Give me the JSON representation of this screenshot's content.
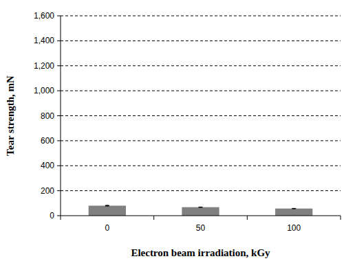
{
  "chart_data": {
    "type": "bar",
    "x_label": "Electron beam irradiation, kGy",
    "y_label": "Tear strength, mN",
    "categories": [
      "0",
      "50",
      "100"
    ],
    "values": [
      80,
      68,
      57
    ],
    "errors": [
      5,
      4,
      4
    ],
    "color": "#808080",
    "ylim": [
      0,
      1600
    ],
    "yticks": [
      0,
      200,
      400,
      600,
      800,
      {
        "value": 1000,
        "label": "1,000"
      },
      {
        "value": 1200,
        "label": "1,200"
      },
      {
        "value": 1400,
        "label": "1,400"
      },
      {
        "value": 1600,
        "label": "1,600"
      }
    ],
    "grid": true
  }
}
